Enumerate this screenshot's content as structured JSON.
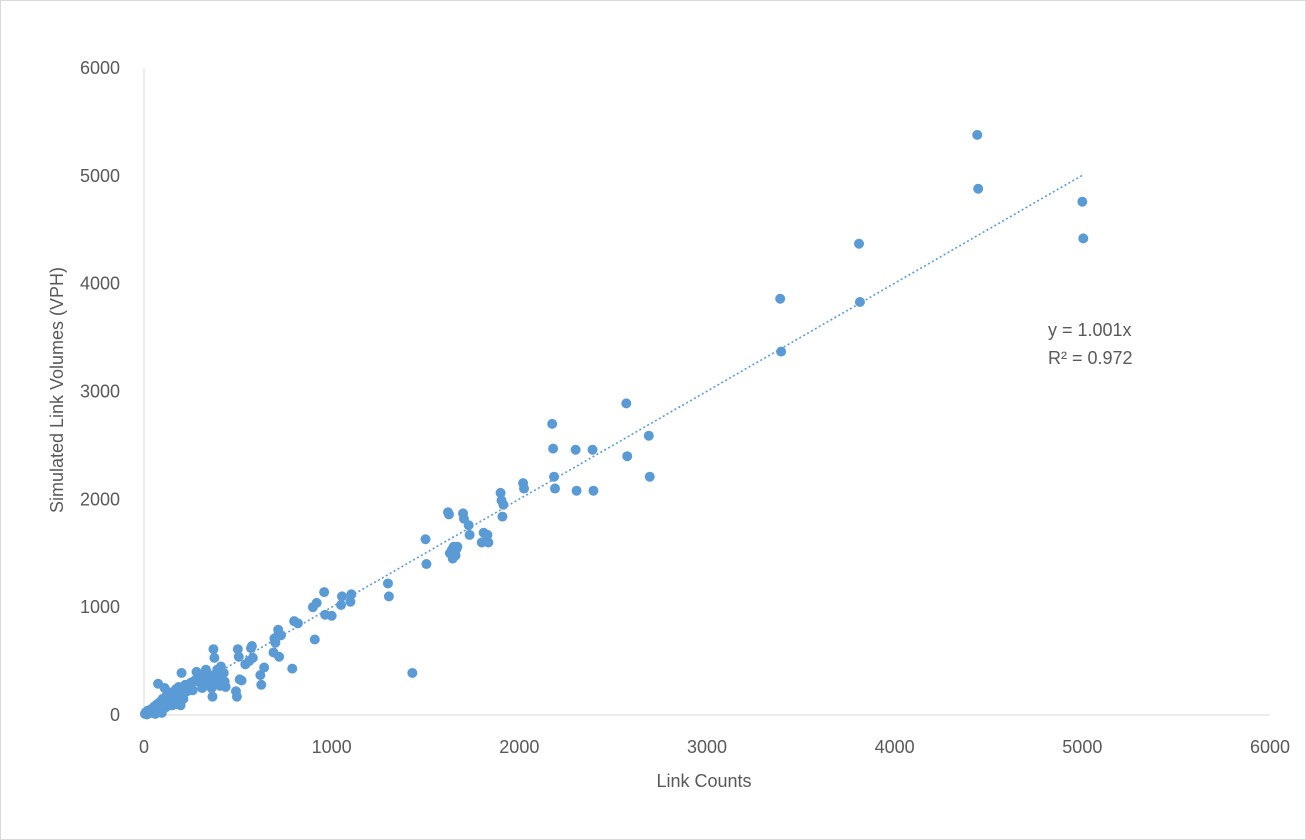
{
  "chart_data": {
    "type": "scatter",
    "title": "",
    "xlabel": "Link Counts",
    "ylabel": "Simulated Link Volumes (VPH)",
    "xlim": [
      0,
      6000
    ],
    "ylim": [
      0,
      6000
    ],
    "xticks": [
      "0",
      "1000",
      "2000",
      "3000",
      "4000",
      "5000",
      "6000"
    ],
    "yticks": [
      "0",
      "1000",
      "2000",
      "3000",
      "4000",
      "5000",
      "6000"
    ],
    "grid": false,
    "legend": "none",
    "marker_color": "#5b9bd5",
    "trendline": {
      "type": "linear",
      "slope": 1.001,
      "x_range": [
        0,
        5000
      ],
      "style": "dotted",
      "color": "#5b9bd5",
      "equation": "y = 1.001x",
      "r_squared": "R² = 0.972"
    },
    "points": [
      [
        5,
        10
      ],
      [
        10,
        25
      ],
      [
        15,
        5
      ],
      [
        20,
        40
      ],
      [
        25,
        15
      ],
      [
        30,
        30
      ],
      [
        35,
        50
      ],
      [
        40,
        20
      ],
      [
        45,
        60
      ],
      [
        50,
        35
      ],
      [
        55,
        80
      ],
      [
        60,
        10
      ],
      [
        65,
        45
      ],
      [
        70,
        100
      ],
      [
        75,
        290
      ],
      [
        80,
        30
      ],
      [
        85,
        120
      ],
      [
        90,
        60
      ],
      [
        95,
        20
      ],
      [
        100,
        150
      ],
      [
        105,
        90
      ],
      [
        110,
        250
      ],
      [
        115,
        70
      ],
      [
        120,
        180
      ],
      [
        125,
        130
      ],
      [
        130,
        100
      ],
      [
        135,
        210
      ],
      [
        140,
        160
      ],
      [
        150,
        90
      ],
      [
        160,
        200
      ],
      [
        165,
        120
      ],
      [
        170,
        240
      ],
      [
        175,
        150
      ],
      [
        180,
        100
      ],
      [
        185,
        260
      ],
      [
        190,
        200
      ],
      [
        195,
        90
      ],
      [
        200,
        390
      ],
      [
        205,
        180
      ],
      [
        210,
        150
      ],
      [
        220,
        280
      ],
      [
        230,
        220
      ],
      [
        240,
        250
      ],
      [
        250,
        300
      ],
      [
        260,
        230
      ],
      [
        270,
        320
      ],
      [
        280,
        400
      ],
      [
        290,
        350
      ],
      [
        300,
        300
      ],
      [
        310,
        250
      ],
      [
        320,
        360
      ],
      [
        330,
        420
      ],
      [
        340,
        300
      ],
      [
        350,
        370
      ],
      [
        360,
        250
      ],
      [
        365,
        170
      ],
      [
        370,
        610
      ],
      [
        375,
        530
      ],
      [
        380,
        320
      ],
      [
        385,
        380
      ],
      [
        390,
        420
      ],
      [
        395,
        300
      ],
      [
        400,
        360
      ],
      [
        405,
        270
      ],
      [
        410,
        450
      ],
      [
        415,
        330
      ],
      [
        420,
        280
      ],
      [
        425,
        390
      ],
      [
        430,
        310
      ],
      [
        435,
        260
      ],
      [
        490,
        220
      ],
      [
        495,
        170
      ],
      [
        500,
        610
      ],
      [
        505,
        540
      ],
      [
        510,
        330
      ],
      [
        520,
        320
      ],
      [
        540,
        470
      ],
      [
        560,
        500
      ],
      [
        570,
        620
      ],
      [
        575,
        640
      ],
      [
        580,
        530
      ],
      [
        620,
        370
      ],
      [
        625,
        280
      ],
      [
        640,
        440
      ],
      [
        690,
        580
      ],
      [
        695,
        710
      ],
      [
        700,
        670
      ],
      [
        710,
        730
      ],
      [
        715,
        790
      ],
      [
        720,
        540
      ],
      [
        730,
        740
      ],
      [
        790,
        430
      ],
      [
        800,
        870
      ],
      [
        820,
        850
      ],
      [
        900,
        1000
      ],
      [
        910,
        700
      ],
      [
        920,
        1040
      ],
      [
        960,
        1140
      ],
      [
        965,
        930
      ],
      [
        1000,
        920
      ],
      [
        1050,
        1020
      ],
      [
        1055,
        1100
      ],
      [
        1100,
        1050
      ],
      [
        1105,
        1120
      ],
      [
        1300,
        1220
      ],
      [
        1305,
        1100
      ],
      [
        1430,
        390
      ],
      [
        1500,
        1630
      ],
      [
        1505,
        1400
      ],
      [
        1620,
        1880
      ],
      [
        1625,
        1860
      ],
      [
        1630,
        1500
      ],
      [
        1640,
        1530
      ],
      [
        1645,
        1450
      ],
      [
        1650,
        1560
      ],
      [
        1655,
        1520
      ],
      [
        1660,
        1480
      ],
      [
        1665,
        1540
      ],
      [
        1670,
        1560
      ],
      [
        1700,
        1870
      ],
      [
        1705,
        1820
      ],
      [
        1730,
        1760
      ],
      [
        1735,
        1670
      ],
      [
        1800,
        1600
      ],
      [
        1810,
        1690
      ],
      [
        1830,
        1670
      ],
      [
        1835,
        1600
      ],
      [
        1900,
        2060
      ],
      [
        1905,
        1990
      ],
      [
        1910,
        1840
      ],
      [
        1915,
        1950
      ],
      [
        2020,
        2150
      ],
      [
        2025,
        2100
      ],
      [
        2175,
        2700
      ],
      [
        2180,
        2470
      ],
      [
        2185,
        2210
      ],
      [
        2190,
        2100
      ],
      [
        2300,
        2460
      ],
      [
        2305,
        2080
      ],
      [
        2390,
        2460
      ],
      [
        2395,
        2080
      ],
      [
        2570,
        2890
      ],
      [
        2575,
        2400
      ],
      [
        2690,
        2590
      ],
      [
        2695,
        2210
      ],
      [
        3390,
        3860
      ],
      [
        3395,
        3370
      ],
      [
        3810,
        4370
      ],
      [
        3815,
        3830
      ],
      [
        4440,
        5380
      ],
      [
        4445,
        4880
      ],
      [
        5000,
        4760
      ],
      [
        5005,
        4420
      ]
    ]
  }
}
